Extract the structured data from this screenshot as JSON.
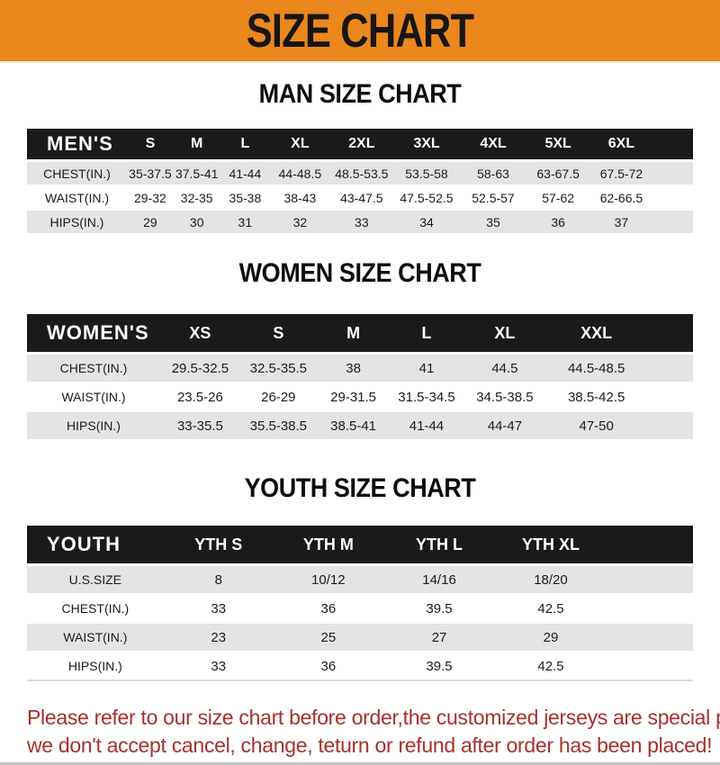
{
  "banner": {
    "title": "SIZE CHART",
    "bg_color": "#EA871D",
    "text_color": "#181512"
  },
  "colors": {
    "header_band": "#1A1A1A",
    "row_stripe": "#E4E4E4",
    "notice_text": "#A6312B"
  },
  "sections": [
    {
      "title": "MAN SIZE CHART",
      "table": {
        "corner_label": "MEN'S",
        "columns": [
          "S",
          "M",
          "L",
          "XL",
          "2XL",
          "3XL",
          "4XL",
          "5XL",
          "6XL"
        ],
        "rows": [
          {
            "label": "CHEST(IN.)",
            "values": [
              "35-37.5",
              "37.5-41",
              "41-44",
              "44-48.5",
              "48.5-53.5",
              "53.5-58",
              "58-63",
              "63-67.5",
              "67.5-72"
            ]
          },
          {
            "label": "WAIST(IN.)",
            "values": [
              "29-32",
              "32-35",
              "35-38",
              "38-43",
              "43-47.5",
              "47.5-52.5",
              "52.5-57",
              "57-62",
              "62-66.5"
            ]
          },
          {
            "label": "HIPS(IN.)",
            "values": [
              "29",
              "30",
              "31",
              "32",
              "33",
              "34",
              "35",
              "36",
              "37"
            ]
          }
        ]
      }
    },
    {
      "title": "WOMEN SIZE CHART",
      "table": {
        "corner_label": "WOMEN'S",
        "columns": [
          "XS",
          "S",
          "M",
          "L",
          "XL",
          "XXL"
        ],
        "rows": [
          {
            "label": "CHEST(IN.)",
            "values": [
              "29.5-32.5",
              "32.5-35.5",
              "38",
              "41",
              "44.5",
              "44.5-48.5"
            ]
          },
          {
            "label": "WAIST(IN.)",
            "values": [
              "23.5-26",
              "26-29",
              "29-31.5",
              "31.5-34.5",
              "34.5-38.5",
              "38.5-42.5"
            ]
          },
          {
            "label": "HIPS(IN.)",
            "values": [
              "33-35.5",
              "35.5-38.5",
              "38.5-41",
              "41-44",
              "44-47",
              "47-50"
            ]
          }
        ]
      }
    },
    {
      "title": "YOUTH SIZE CHART",
      "table": {
        "corner_label": "YOUTH",
        "columns": [
          "YTH S",
          "YTH M",
          "YTH L",
          "YTH XL"
        ],
        "rows": [
          {
            "label": "U.S.SIZE",
            "values": [
              "8",
              "10/12",
              "14/16",
              "18/20"
            ]
          },
          {
            "label": "CHEST(IN.)",
            "values": [
              "33",
              "36",
              "39.5",
              "42.5"
            ]
          },
          {
            "label": "WAIST(IN.)",
            "values": [
              "23",
              "25",
              "27",
              "29"
            ]
          },
          {
            "label": "HIPS(IN.)",
            "values": [
              "33",
              "36",
              "39.5",
              "42.5"
            ]
          }
        ]
      }
    }
  ],
  "footer": {
    "line1": "Please refer to our size chart before order,the customized jerseys are special products,",
    "line2": "we don't accept cancel, change, teturn or refund after order has been placed!"
  }
}
